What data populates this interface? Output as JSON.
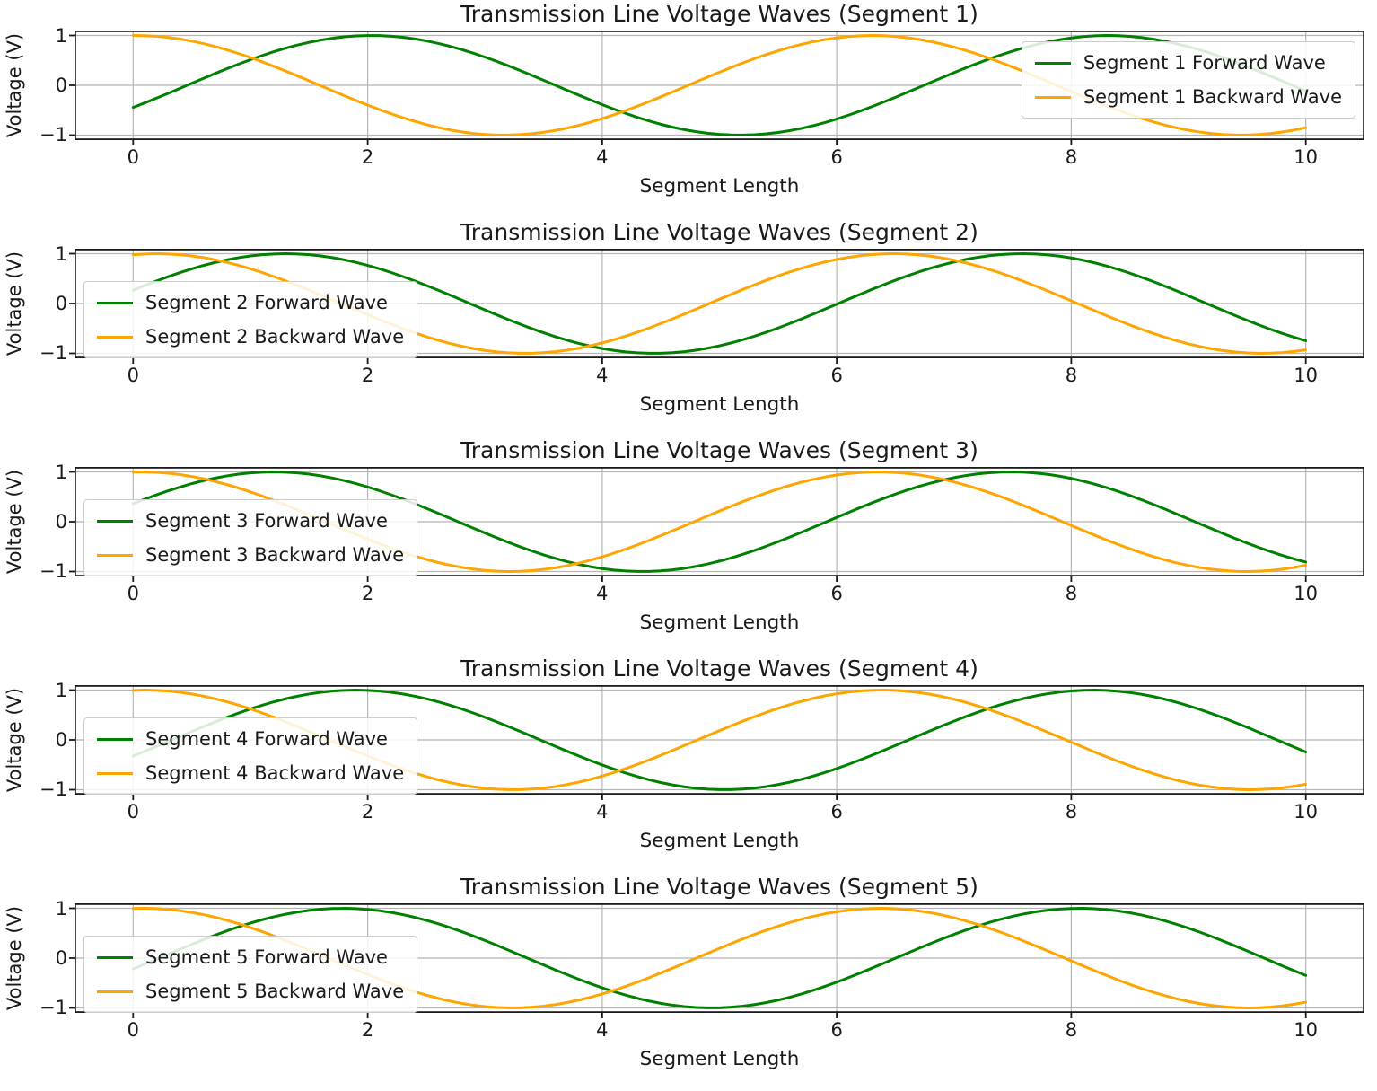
{
  "colors": {
    "forward_wave": "#008000",
    "backward_wave": "#FFA500",
    "grid": "#b5b5b5",
    "axis": "#1a1a1a",
    "legend_border": "#cccccc"
  },
  "chart_data": [
    {
      "type": "line",
      "title": "Transmission Line Voltage Waves (Segment 1)",
      "xlabel": "Segment Length",
      "ylabel": "Voltage (V)",
      "xlim": [
        -0.5,
        10.5
      ],
      "ylim": [
        -1.1,
        1.1
      ],
      "x_ticks": [
        0,
        2,
        4,
        6,
        8,
        10
      ],
      "y_ticks": [
        1,
        0,
        -1
      ],
      "grid": true,
      "legend_loc": "upper right",
      "series": [
        {
          "name": "Segment 1 Forward Wave",
          "color": "#008000",
          "model": "y = amplitude * sin(omega * x + phase)",
          "amplitude": 1,
          "omega": 1,
          "phase": -0.46,
          "x_start": 0,
          "x_end": 10,
          "sample_step": 0.1
        },
        {
          "name": "Segment 1 Backward Wave",
          "color": "#FFA500",
          "model": "y = amplitude * sin(omega * x + phase)",
          "amplitude": 1,
          "omega": 1,
          "phase": 1.55,
          "x_start": 0,
          "x_end": 10,
          "sample_step": 0.1
        }
      ]
    },
    {
      "type": "line",
      "title": "Transmission Line Voltage Waves (Segment 2)",
      "xlabel": "Segment Length",
      "ylabel": "Voltage (V)",
      "xlim": [
        -0.5,
        10.5
      ],
      "ylim": [
        -1.1,
        1.1
      ],
      "x_ticks": [
        0,
        2,
        4,
        6,
        8,
        10
      ],
      "y_ticks": [
        1,
        0,
        -1
      ],
      "grid": true,
      "legend_loc": "center left",
      "series": [
        {
          "name": "Segment 2 Forward Wave",
          "color": "#008000",
          "model": "y = amplitude * sin(omega * x + phase)",
          "amplitude": 1,
          "omega": 1,
          "phase": 0.27,
          "x_start": 0,
          "x_end": 10,
          "sample_step": 0.1
        },
        {
          "name": "Segment 2 Backward Wave",
          "color": "#FFA500",
          "model": "y = amplitude * sin(omega * x + phase)",
          "amplitude": 1,
          "omega": 1,
          "phase": 1.37,
          "x_start": 0,
          "x_end": 10,
          "sample_step": 0.1
        }
      ]
    },
    {
      "type": "line",
      "title": "Transmission Line Voltage Waves (Segment 3)",
      "xlabel": "Segment Length",
      "ylabel": "Voltage (V)",
      "xlim": [
        -0.5,
        10.5
      ],
      "ylim": [
        -1.1,
        1.1
      ],
      "x_ticks": [
        0,
        2,
        4,
        6,
        8,
        10
      ],
      "y_ticks": [
        1,
        0,
        -1
      ],
      "grid": true,
      "legend_loc": "center left",
      "series": [
        {
          "name": "Segment 3 Forward Wave",
          "color": "#008000",
          "model": "y = amplitude * sin(omega * x + phase)",
          "amplitude": 1,
          "omega": 1,
          "phase": 0.37,
          "x_start": 0,
          "x_end": 10,
          "sample_step": 0.1
        },
        {
          "name": "Segment 3 Backward Wave",
          "color": "#FFA500",
          "model": "y = amplitude * sin(omega * x + phase)",
          "amplitude": 1,
          "omega": 1,
          "phase": 1.5,
          "x_start": 0,
          "x_end": 10,
          "sample_step": 0.1
        }
      ]
    },
    {
      "type": "line",
      "title": "Transmission Line Voltage Waves (Segment 4)",
      "xlabel": "Segment Length",
      "ylabel": "Voltage (V)",
      "xlim": [
        -0.5,
        10.5
      ],
      "ylim": [
        -1.1,
        1.1
      ],
      "x_ticks": [
        0,
        2,
        4,
        6,
        8,
        10
      ],
      "y_ticks": [
        1,
        0,
        -1
      ],
      "grid": true,
      "legend_loc": "center left",
      "series": [
        {
          "name": "Segment 4 Forward Wave",
          "color": "#008000",
          "model": "y = amplitude * sin(omega * x + phase)",
          "amplitude": 1,
          "omega": 1,
          "phase": -0.33,
          "x_start": 0,
          "x_end": 10,
          "sample_step": 0.1
        },
        {
          "name": "Segment 4 Backward Wave",
          "color": "#FFA500",
          "model": "y = amplitude * sin(omega * x + phase)",
          "amplitude": 1,
          "omega": 1,
          "phase": 1.47,
          "x_start": 0,
          "x_end": 10,
          "sample_step": 0.1
        }
      ]
    },
    {
      "type": "line",
      "title": "Transmission Line Voltage Waves (Segment 5)",
      "xlabel": "Segment Length",
      "ylabel": "Voltage (V)",
      "xlim": [
        -0.5,
        10.5
      ],
      "ylim": [
        -1.1,
        1.1
      ],
      "x_ticks": [
        0,
        2,
        4,
        6,
        8,
        10
      ],
      "y_ticks": [
        1,
        0,
        -1
      ],
      "grid": true,
      "legend_loc": "center left",
      "series": [
        {
          "name": "Segment 5 Forward Wave",
          "color": "#008000",
          "model": "y = amplitude * sin(omega * x + phase)",
          "amplitude": 1,
          "omega": 1,
          "phase": -0.22,
          "x_start": 0,
          "x_end": 10,
          "sample_step": 0.1
        },
        {
          "name": "Segment 5 Backward Wave",
          "color": "#FFA500",
          "model": "y = amplitude * sin(omega * x + phase)",
          "amplitude": 1,
          "omega": 1,
          "phase": 1.48,
          "x_start": 0,
          "x_end": 10,
          "sample_step": 0.1
        }
      ]
    }
  ]
}
